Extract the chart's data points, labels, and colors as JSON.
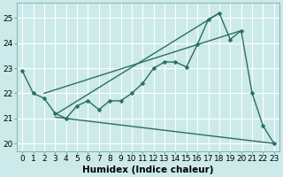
{
  "title": "",
  "xlabel": "Humidex (Indice chaleur)",
  "background_color": "#cceaea",
  "grid_color": "#ffffff",
  "line_color": "#2a6e60",
  "xlim": [
    -0.5,
    23.5
  ],
  "ylim": [
    19.7,
    25.6
  ],
  "yticks": [
    20,
    21,
    22,
    23,
    24,
    25
  ],
  "xtick_labels": [
    "0",
    "1",
    "2",
    "3",
    "4",
    "5",
    "6",
    "7",
    "8",
    "9",
    "10",
    "11",
    "12",
    "13",
    "14",
    "15",
    "16",
    "17",
    "18",
    "19",
    "20",
    "21",
    "22",
    "23"
  ],
  "series1": {
    "x": [
      0,
      1,
      2,
      3,
      4,
      5,
      6,
      7,
      8,
      9,
      10,
      11,
      12,
      13,
      14,
      15,
      16,
      17,
      18,
      19,
      20,
      21,
      22,
      23
    ],
    "y": [
      22.9,
      22.0,
      21.8,
      21.2,
      21.0,
      21.5,
      21.7,
      21.35,
      21.7,
      21.7,
      22.0,
      22.4,
      23.0,
      23.25,
      23.25,
      23.05,
      23.95,
      24.95,
      25.2,
      24.15,
      24.5,
      22.0,
      20.7,
      20.0
    ]
  },
  "series2_linear": {
    "x": [
      2,
      20
    ],
    "y": [
      22.0,
      24.5
    ]
  },
  "series3_linear": {
    "x": [
      3,
      18
    ],
    "y": [
      21.15,
      25.2
    ]
  },
  "series4_linear": {
    "x": [
      3,
      23
    ],
    "y": [
      21.05,
      20.0
    ]
  },
  "markersize": 2.5,
  "linewidth": 1.0,
  "xlabel_fontsize": 7.5,
  "tick_fontsize": 6.5
}
